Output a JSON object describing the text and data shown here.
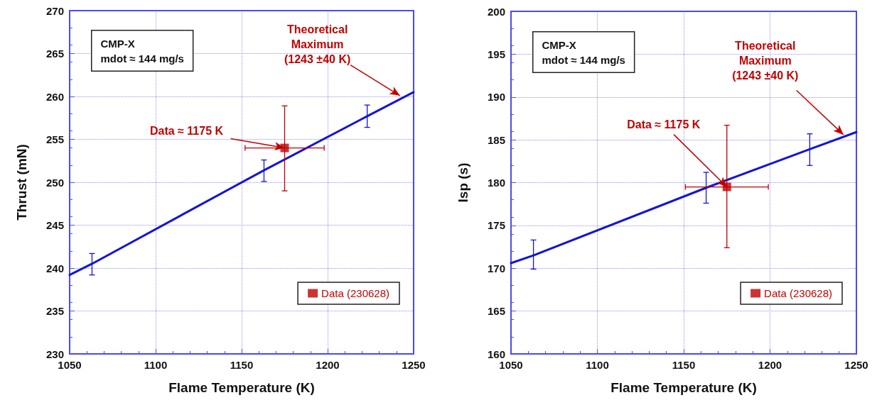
{
  "chart_data": [
    {
      "type": "line",
      "xlabel": "Flame Temperature (K)",
      "ylabel": "Thrust (mN)",
      "xlim": [
        1050,
        1250
      ],
      "xticks": [
        1050,
        1100,
        1150,
        1200,
        1250
      ],
      "ylim": [
        230,
        270
      ],
      "yticks": [
        230,
        235,
        240,
        245,
        250,
        255,
        260,
        265,
        270
      ],
      "grid": true,
      "legend": "bottom right",
      "line_style": "solid",
      "annotations": [
        "CMP-X\nmdot ≈ 144 mg/s",
        {
          "text": "Theoretical\nMaximum\n(1243 ±40 K)",
          "x": 1242,
          "y": 260.1
        },
        {
          "text": "Data ≈ 1175 K",
          "x": 1175,
          "y": 254.0
        }
      ],
      "series": [
        {
          "type": "line",
          "color": "#1414d8",
          "marker": "none",
          "x": [
            1050,
            1063,
            1163,
            1223,
            1250
          ],
          "values": [
            239.2,
            240.5,
            251.4,
            257.7,
            260.5
          ],
          "errors": [
            null,
            [
              239.2,
              241.7
            ],
            [
              250.1,
              252.6
            ],
            [
              256.4,
              259.0
            ],
            null
          ]
        },
        {
          "type": "scatter",
          "name": "Data (230628)",
          "color": "#c00000",
          "marker": "square",
          "x": [
            1175
          ],
          "values": [
            254.0
          ],
          "errors": [
            [
              249.0,
              258.9
            ]
          ],
          "xerrors": [
            [
              1152,
              1198
            ]
          ]
        }
      ]
    },
    {
      "type": "line",
      "xlabel": "Flame Temperature (K)",
      "ylabel": "Isp (s)",
      "xlim": [
        1050,
        1250
      ],
      "xticks": [
        1050,
        1100,
        1150,
        1200,
        1250
      ],
      "ylim": [
        160,
        200
      ],
      "yticks": [
        160,
        165,
        170,
        175,
        180,
        185,
        190,
        195,
        200
      ],
      "grid": true,
      "legend": "bottom right",
      "line_style": "solid",
      "annotations": [
        "CMP-X\nmdot ≈ 144 mg/s",
        {
          "text": "Theoretical\nMaximum\n(1243 ±40 K)",
          "x": 1242.5,
          "y": 185.6
        },
        {
          "text": "Data ≈ 1175 K",
          "x": 1175,
          "y": 179.5
        }
      ],
      "series": [
        {
          "type": "line",
          "color": "#1414d8",
          "marker": "none",
          "x": [
            1050,
            1063,
            1163,
            1223,
            1250
          ],
          "values": [
            170.6,
            171.5,
            179.4,
            183.9,
            185.9
          ],
          "errors": [
            null,
            [
              169.9,
              173.3
            ],
            [
              177.6,
              181.2
            ],
            [
              182.0,
              185.7
            ],
            null
          ]
        },
        {
          "type": "scatter",
          "name": "Data (230628)",
          "color": "#c00000",
          "marker": "square",
          "x": [
            1175
          ],
          "values": [
            179.5
          ],
          "errors": [
            [
              172.4,
              186.7
            ]
          ],
          "xerrors": [
            [
              1151,
              1199
            ]
          ]
        }
      ]
    }
  ]
}
